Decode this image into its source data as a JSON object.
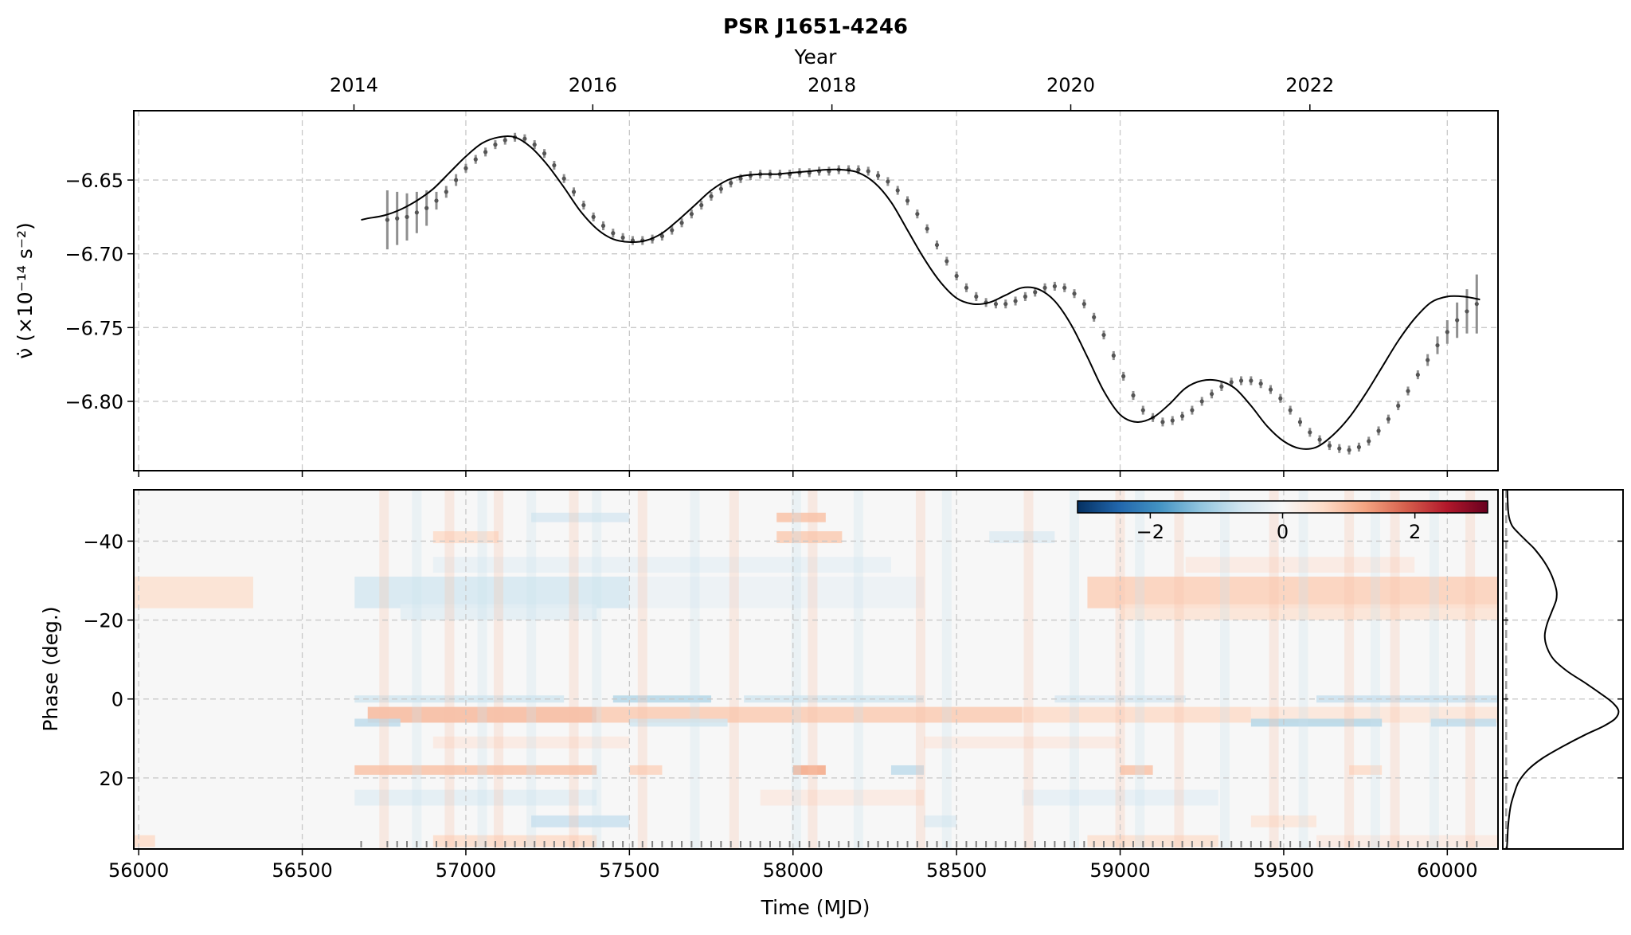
{
  "figure": {
    "title": "PSR J1651-4246",
    "top_axis_label": "Year",
    "year_ticks": [
      2014,
      2016,
      2018,
      2020,
      2022
    ],
    "year_ticks_mjd": [
      56658,
      57388,
      58119,
      58849,
      59580
    ],
    "x_label": "Time (MJD)",
    "x_ticks": [
      56000,
      56500,
      57000,
      57500,
      58000,
      58500,
      59000,
      59500,
      60000
    ],
    "xlim": [
      55985,
      60155
    ]
  },
  "chart_data": [
    {
      "type": "line",
      "name": "spin-down rate",
      "ylabel": "ν̇ (×10⁻¹⁴ s⁻²)",
      "y_ticks": [
        -6.65,
        -6.7,
        -6.75,
        -6.8
      ],
      "y_tick_labels": [
        "−6.65",
        "−6.70",
        "−6.75",
        "−6.80"
      ],
      "ylim": [
        -6.847,
        -6.603
      ],
      "grid": true,
      "series": [
        {
          "name": "model",
          "x": [
            56680,
            56700,
            56750,
            56800,
            56850,
            56900,
            56950,
            57000,
            57050,
            57100,
            57150,
            57200,
            57250,
            57300,
            57350,
            57400,
            57450,
            57500,
            57550,
            57600,
            57650,
            57700,
            57750,
            57800,
            57850,
            57900,
            57950,
            58000,
            58050,
            58100,
            58150,
            58200,
            58250,
            58300,
            58350,
            58400,
            58450,
            58500,
            58550,
            58600,
            58650,
            58700,
            58750,
            58800,
            58850,
            58900,
            58950,
            59000,
            59050,
            59100,
            59150,
            59200,
            59250,
            59300,
            59350,
            59400,
            59450,
            59500,
            59550,
            59600,
            59650,
            59700,
            59750,
            59800,
            59850,
            59900,
            59950,
            60000,
            60050,
            60100
          ],
          "y": [
            -6.677,
            -6.676,
            -6.674,
            -6.67,
            -6.664,
            -6.656,
            -6.645,
            -6.634,
            -6.625,
            -6.621,
            -6.621,
            -6.628,
            -6.64,
            -6.655,
            -6.671,
            -6.683,
            -6.69,
            -6.692,
            -6.691,
            -6.686,
            -6.677,
            -6.667,
            -6.657,
            -6.65,
            -6.647,
            -6.646,
            -6.646,
            -6.645,
            -6.644,
            -6.643,
            -6.643,
            -6.645,
            -6.652,
            -6.665,
            -6.684,
            -6.703,
            -6.719,
            -6.73,
            -6.734,
            -6.733,
            -6.728,
            -6.723,
            -6.724,
            -6.732,
            -6.748,
            -6.77,
            -6.793,
            -6.809,
            -6.814,
            -6.811,
            -6.802,
            -6.791,
            -6.786,
            -6.786,
            -6.791,
            -6.803,
            -6.817,
            -6.827,
            -6.832,
            -6.831,
            -6.823,
            -6.811,
            -6.795,
            -6.777,
            -6.759,
            -6.744,
            -6.733,
            -6.729,
            -6.729,
            -6.731
          ]
        },
        {
          "name": "measurements",
          "x": [
            56760,
            56790,
            56820,
            56850,
            56880,
            56910,
            56940,
            56970,
            57000,
            57030,
            57060,
            57090,
            57120,
            57150,
            57180,
            57210,
            57240,
            57270,
            57300,
            57330,
            57360,
            57390,
            57420,
            57450,
            57480,
            57510,
            57540,
            57570,
            57600,
            57630,
            57660,
            57690,
            57720,
            57750,
            57780,
            57810,
            57840,
            57870,
            57900,
            57930,
            57960,
            57990,
            58020,
            58050,
            58080,
            58110,
            58140,
            58170,
            58200,
            58230,
            58260,
            58290,
            58320,
            58350,
            58380,
            58410,
            58440,
            58470,
            58500,
            58530,
            58560,
            58590,
            58620,
            58650,
            58680,
            58710,
            58740,
            58770,
            58800,
            58830,
            58860,
            58890,
            58920,
            58950,
            58980,
            59010,
            59040,
            59070,
            59100,
            59130,
            59160,
            59190,
            59220,
            59250,
            59280,
            59310,
            59340,
            59370,
            59400,
            59430,
            59460,
            59490,
            59520,
            59550,
            59580,
            59610,
            59640,
            59670,
            59700,
            59730,
            59760,
            59790,
            59820,
            59850,
            59880,
            59910,
            59940,
            59970,
            60000,
            60030,
            60060,
            60090
          ],
          "y": [
            -6.677,
            -6.676,
            -6.675,
            -6.672,
            -6.669,
            -6.664,
            -6.658,
            -6.65,
            -6.642,
            -6.636,
            -6.631,
            -6.626,
            -6.623,
            -6.621,
            -6.622,
            -6.626,
            -6.632,
            -6.64,
            -6.649,
            -6.658,
            -6.667,
            -6.675,
            -6.681,
            -6.686,
            -6.689,
            -6.691,
            -6.691,
            -6.69,
            -6.688,
            -6.684,
            -6.679,
            -6.673,
            -6.667,
            -6.661,
            -6.656,
            -6.652,
            -6.649,
            -6.647,
            -6.646,
            -6.646,
            -6.646,
            -6.646,
            -6.645,
            -6.645,
            -6.644,
            -6.644,
            -6.643,
            -6.643,
            -6.643,
            -6.644,
            -6.647,
            -6.651,
            -6.657,
            -6.664,
            -6.673,
            -6.683,
            -6.694,
            -6.705,
            -6.715,
            -6.723,
            -6.729,
            -6.733,
            -6.734,
            -6.734,
            -6.732,
            -6.729,
            -6.726,
            -6.723,
            -6.722,
            -6.723,
            -6.727,
            -6.734,
            -6.743,
            -6.755,
            -6.769,
            -6.783,
            -6.796,
            -6.806,
            -6.811,
            -6.814,
            -6.813,
            -6.81,
            -6.806,
            -6.8,
            -6.795,
            -6.79,
            -6.787,
            -6.786,
            -6.786,
            -6.788,
            -6.792,
            -6.798,
            -6.806,
            -6.814,
            -6.821,
            -6.826,
            -6.83,
            -6.832,
            -6.833,
            -6.831,
            -6.827,
            -6.82,
            -6.812,
            -6.803,
            -6.793,
            -6.782,
            -6.772,
            -6.762,
            -6.753,
            -6.745,
            -6.739,
            -6.734
          ],
          "err": [
            0.02,
            0.018,
            0.016,
            0.014,
            0.012,
            0.006,
            0.004,
            0.004,
            0.003,
            0.003,
            0.003,
            0.003,
            0.003,
            0.003,
            0.003,
            0.003,
            0.003,
            0.003,
            0.003,
            0.003,
            0.003,
            0.003,
            0.003,
            0.003,
            0.003,
            0.003,
            0.003,
            0.003,
            0.003,
            0.003,
            0.003,
            0.003,
            0.003,
            0.003,
            0.003,
            0.003,
            0.003,
            0.003,
            0.003,
            0.003,
            0.003,
            0.003,
            0.003,
            0.003,
            0.003,
            0.003,
            0.003,
            0.003,
            0.003,
            0.003,
            0.003,
            0.003,
            0.003,
            0.003,
            0.003,
            0.003,
            0.003,
            0.003,
            0.003,
            0.003,
            0.003,
            0.003,
            0.003,
            0.003,
            0.003,
            0.003,
            0.003,
            0.003,
            0.003,
            0.003,
            0.003,
            0.003,
            0.003,
            0.003,
            0.003,
            0.003,
            0.003,
            0.003,
            0.003,
            0.003,
            0.003,
            0.003,
            0.003,
            0.003,
            0.003,
            0.003,
            0.003,
            0.003,
            0.003,
            0.003,
            0.003,
            0.003,
            0.003,
            0.003,
            0.003,
            0.003,
            0.003,
            0.003,
            0.003,
            0.003,
            0.003,
            0.003,
            0.003,
            0.003,
            0.003,
            0.003,
            0.004,
            0.006,
            0.008,
            0.012,
            0.015,
            0.02
          ]
        }
      ]
    },
    {
      "type": "heatmap",
      "name": "profile residuals",
      "ylabel": "Phase (deg.)",
      "y_ticks": [
        -40,
        -20,
        0,
        20
      ],
      "y_tick_labels": [
        "−40",
        "−20",
        "0",
        "20"
      ],
      "ylim": [
        -53,
        38
      ],
      "colormap": "RdBu_r",
      "colorbar": {
        "range": [
          -3.1,
          3.1
        ],
        "ticks": [
          -2,
          0,
          2
        ],
        "tick_labels": [
          "−2",
          "0",
          "2"
        ],
        "colors": [
          "#053061",
          "#2166ac",
          "#4393c3",
          "#92c5de",
          "#d1e5f0",
          "#f7f7f7",
          "#fddbc7",
          "#f4a582",
          "#d6604d",
          "#b2182b",
          "#67001f"
        ]
      },
      "data_start_mjd": 56660,
      "bands": [
        {
          "phase": -27,
          "halfwidth": 4,
          "segments": [
            [
              55985,
              56350,
              0.5
            ],
            [
              56660,
              57500,
              -0.55
            ],
            [
              57500,
              58400,
              -0.2
            ],
            [
              58900,
              60155,
              0.75
            ]
          ]
        },
        {
          "phase": -22,
          "halfwidth": 2,
          "segments": [
            [
              56800,
              57400,
              -0.35
            ],
            [
              59000,
              60155,
              0.45
            ]
          ]
        },
        {
          "phase": -34,
          "halfwidth": 2,
          "segments": [
            [
              56900,
              58300,
              -0.25
            ],
            [
              59200,
              59900,
              0.3
            ]
          ]
        },
        {
          "phase": -41,
          "halfwidth": 1.5,
          "segments": [
            [
              56900,
              57100,
              0.6
            ],
            [
              57950,
              58150,
              0.8
            ],
            [
              58600,
              58800,
              -0.4
            ]
          ]
        },
        {
          "phase": -46,
          "halfwidth": 1.2,
          "segments": [
            [
              57200,
              57500,
              -0.5
            ],
            [
              57950,
              58100,
              0.9
            ]
          ]
        },
        {
          "phase": 0,
          "halfwidth": 0.9,
          "segments": [
            [
              56660,
              57300,
              -0.6
            ],
            [
              57450,
              57750,
              -0.9
            ],
            [
              57850,
              58400,
              -0.6
            ],
            [
              58800,
              59200,
              -0.5
            ],
            [
              59600,
              60155,
              -0.7
            ]
          ]
        },
        {
          "phase": 4,
          "halfwidth": 2,
          "segments": [
            [
              56700,
              57400,
              1.0
            ],
            [
              57400,
              58700,
              0.8
            ],
            [
              58700,
              59400,
              0.6
            ],
            [
              59400,
              60155,
              0.4
            ]
          ]
        },
        {
          "phase": 6,
          "halfwidth": 1,
          "segments": [
            [
              56660,
              56800,
              -0.8
            ],
            [
              57500,
              57800,
              -0.6
            ],
            [
              59400,
              59800,
              -0.9
            ],
            [
              59950,
              60150,
              -0.8
            ]
          ]
        },
        {
          "phase": 11,
          "halfwidth": 1.5,
          "segments": [
            [
              56900,
              57500,
              0.3
            ],
            [
              58400,
              59000,
              0.3
            ]
          ]
        },
        {
          "phase": 18,
          "halfwidth": 1.2,
          "segments": [
            [
              56660,
              57400,
              0.9
            ],
            [
              57500,
              57600,
              0.7
            ],
            [
              58000,
              58100,
              1.2
            ],
            [
              58300,
              58400,
              -0.8
            ],
            [
              59000,
              59100,
              0.9
            ],
            [
              59700,
              59800,
              0.6
            ]
          ]
        },
        {
          "phase": 25,
          "halfwidth": 2,
          "segments": [
            [
              56660,
              57400,
              -0.35
            ],
            [
              57900,
              58400,
              0.3
            ],
            [
              58700,
              59300,
              -0.3
            ]
          ]
        },
        {
          "phase": 31,
          "halfwidth": 1.5,
          "segments": [
            [
              57200,
              57500,
              -0.7
            ],
            [
              58400,
              58500,
              -0.4
            ],
            [
              59400,
              59600,
              0.4
            ]
          ]
        },
        {
          "phase": 36,
          "halfwidth": 1.5,
          "segments": [
            [
              55985,
              56050,
              0.6
            ],
            [
              56900,
              57400,
              0.6
            ],
            [
              58900,
              59300,
              0.5
            ],
            [
              59600,
              60155,
              0.3
            ]
          ]
        }
      ],
      "stripes": [
        56750,
        56850,
        56950,
        57050,
        57100,
        57200,
        57330,
        57400,
        57540,
        57700,
        57820,
        58010,
        58060,
        58200,
        58390,
        58470,
        58720,
        58860,
        59000,
        59060,
        59180,
        59320,
        59470,
        59560,
        59700,
        59780,
        59840,
        59960,
        60070
      ],
      "toa_ticks": [
        56680,
        56760,
        56790,
        56820,
        56850,
        56880,
        56910,
        56940,
        56970,
        57000,
        57030,
        57060,
        57090,
        57120,
        57150,
        57180,
        57210,
        57240,
        57270,
        57300,
        57330,
        57360,
        57390,
        57420,
        57450,
        57480,
        57510,
        57540,
        57570,
        57600,
        57630,
        57660,
        57690,
        57720,
        57750,
        57780,
        57810,
        57840,
        57870,
        57900,
        57930,
        57960,
        57990,
        58020,
        58050,
        58080,
        58110,
        58140,
        58170,
        58200,
        58230,
        58260,
        58290,
        58320,
        58350,
        58380,
        58410,
        58440,
        58470,
        58500,
        58530,
        58560,
        58590,
        58620,
        58650,
        58680,
        58710,
        58740,
        58770,
        58800,
        58830,
        58860,
        58890,
        58920,
        58950,
        58980,
        59010,
        59040,
        59070,
        59100,
        59130,
        59160,
        59190,
        59220,
        59250,
        59280,
        59310,
        59340,
        59370,
        59400,
        59430,
        59460,
        59490,
        59520,
        59550,
        59580,
        59610,
        59640,
        59670,
        59700,
        59730,
        59760,
        59790,
        59820,
        59850,
        59880,
        59910,
        59940,
        59970,
        60000,
        60030,
        60060,
        60090
      ]
    },
    {
      "type": "line",
      "name": "average profile",
      "orientation": "vertical",
      "phase": [
        -53,
        -47,
        -44,
        -42,
        -40,
        -38,
        -35,
        -32,
        -29,
        -27,
        -25,
        -22,
        -19,
        -16,
        -13,
        -10,
        -7,
        -4,
        -1,
        1,
        3,
        5,
        7,
        9,
        12,
        15,
        18,
        21,
        24,
        27,
        30,
        33,
        36,
        38
      ],
      "intensity": [
        0.01,
        0.02,
        0.05,
        0.11,
        0.18,
        0.25,
        0.33,
        0.39,
        0.43,
        0.445,
        0.44,
        0.4,
        0.36,
        0.34,
        0.36,
        0.42,
        0.54,
        0.7,
        0.85,
        0.94,
        0.99,
        0.96,
        0.85,
        0.7,
        0.5,
        0.32,
        0.19,
        0.11,
        0.07,
        0.04,
        0.025,
        0.015,
        0.01,
        0.005
      ],
      "baseline": 0,
      "xlim": [
        -0.03,
        1.03
      ]
    }
  ]
}
